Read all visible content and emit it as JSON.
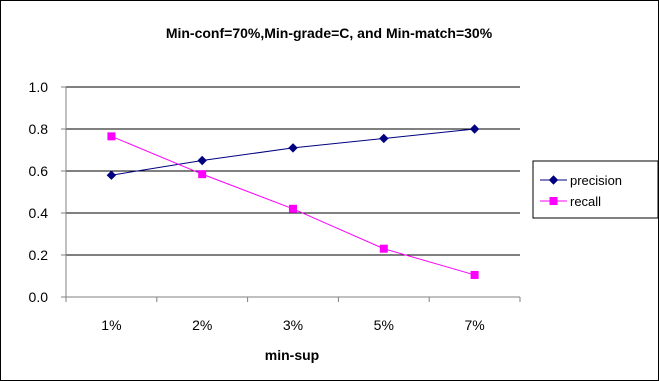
{
  "chart_data": {
    "type": "line",
    "title": "Min-conf=70%,Min-grade=C, and Min-match=30%",
    "xlabel": "min-sup",
    "ylabel": "",
    "categories": [
      "1%",
      "2%",
      "3%",
      "5%",
      "7%"
    ],
    "ylim": [
      0,
      1
    ],
    "yticks": [
      0.0,
      0.2,
      0.4,
      0.6,
      0.8,
      1.0
    ],
    "ytick_labels": [
      "0.0",
      "0.2",
      "0.4",
      "0.6",
      "0.8",
      "1.0"
    ],
    "grid": "horizontal",
    "legend_position": "right",
    "series": [
      {
        "name": "precision",
        "values": [
          0.58,
          0.65,
          0.71,
          0.755,
          0.8
        ],
        "color": "#000080",
        "marker": "diamond"
      },
      {
        "name": "recall",
        "values": [
          0.765,
          0.585,
          0.42,
          0.23,
          0.105
        ],
        "color": "#ff00ff",
        "marker": "square"
      }
    ]
  }
}
